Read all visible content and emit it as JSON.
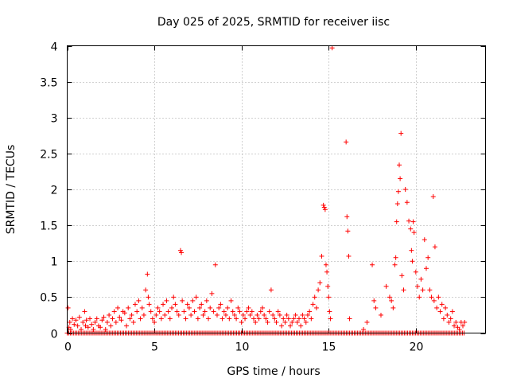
{
  "chart_data": {
    "type": "scatter",
    "title": "Day 025 of 2025, SRMTID for receiver iisc",
    "xlabel": "GPS time / hours",
    "ylabel": "SRMTID / TECUs",
    "xlim": [
      0,
      24
    ],
    "ylim": [
      0,
      4
    ],
    "xticks": [
      0,
      5,
      10,
      15,
      20
    ],
    "yticks": [
      0,
      0.5,
      1,
      1.5,
      2,
      2.5,
      3,
      3.5,
      4
    ],
    "xtick_labels": [
      "0",
      "5",
      "10",
      "15",
      "20"
    ],
    "ytick_labels": [
      "0",
      "0.5",
      "1",
      "1.5",
      "2",
      "2.5",
      "3",
      "3.5",
      "4"
    ],
    "grid": true,
    "marker": "+",
    "color": "#ff0000",
    "series": [
      {
        "name": "SRMTID",
        "x": [
          0.05,
          0.1,
          0.15,
          0.2,
          0.3,
          0.4,
          0.5,
          0.6,
          0.7,
          0.8,
          0.9,
          1.0,
          1.05,
          1.1,
          1.2,
          1.3,
          1.4,
          1.5,
          1.6,
          1.7,
          1.8,
          1.9,
          2.0,
          2.1,
          2.2,
          2.3,
          2.4,
          2.5,
          2.6,
          2.7,
          2.8,
          2.9,
          3.0,
          3.1,
          3.2,
          3.3,
          3.4,
          3.5,
          3.6,
          3.7,
          3.8,
          3.9,
          4.0,
          4.1,
          4.2,
          4.3,
          4.4,
          4.5,
          4.6,
          4.65,
          4.7,
          4.8,
          4.9,
          5.0,
          5.1,
          5.2,
          5.3,
          5.4,
          5.5,
          5.6,
          5.7,
          5.8,
          5.9,
          6.0,
          6.1,
          6.2,
          6.3,
          6.4,
          6.5,
          6.55,
          6.6,
          6.7,
          6.8,
          6.9,
          7.0,
          7.1,
          7.2,
          7.3,
          7.4,
          7.5,
          7.6,
          7.7,
          7.8,
          7.9,
          8.0,
          8.1,
          8.2,
          8.3,
          8.4,
          8.5,
          8.6,
          8.7,
          8.8,
          8.9,
          9.0,
          9.1,
          9.2,
          9.3,
          9.4,
          9.5,
          9.6,
          9.7,
          9.8,
          9.9,
          10.0,
          10.1,
          10.2,
          10.3,
          10.4,
          10.5,
          10.6,
          10.7,
          10.8,
          10.9,
          11.0,
          11.1,
          11.2,
          11.3,
          11.4,
          11.5,
          11.6,
          11.7,
          11.8,
          11.9,
          12.0,
          12.1,
          12.2,
          12.3,
          12.4,
          12.5,
          12.6,
          12.7,
          12.8,
          12.9,
          13.0,
          13.1,
          13.2,
          13.3,
          13.4,
          13.5,
          13.6,
          13.7,
          13.8,
          13.9,
          14.0,
          14.1,
          14.2,
          14.3,
          14.4,
          14.5,
          14.6,
          14.7,
          14.75,
          14.8,
          14.85,
          14.9,
          14.95,
          15.0,
          15.05,
          15.1,
          15.2,
          16.0,
          16.05,
          16.1,
          16.15,
          16.2,
          17.0,
          17.2,
          17.5,
          17.6,
          17.7,
          18.0,
          18.3,
          18.5,
          18.6,
          18.7,
          18.8,
          18.85,
          18.9,
          18.95,
          19.0,
          19.05,
          19.1,
          19.15,
          19.2,
          19.3,
          19.4,
          19.5,
          19.6,
          19.7,
          19.75,
          19.8,
          19.85,
          19.9,
          20.0,
          20.1,
          20.2,
          20.3,
          20.4,
          20.5,
          20.6,
          20.7,
          20.8,
          20.9,
          21.0,
          21.05,
          21.1,
          21.2,
          21.3,
          21.4,
          21.5,
          21.6,
          21.7,
          21.8,
          21.9,
          22.0,
          22.1,
          22.2,
          22.3,
          22.4,
          22.5,
          22.6,
          22.7,
          22.8
        ],
        "y": [
          0.35,
          0.08,
          0.15,
          0.05,
          0.2,
          0.12,
          0.18,
          0.1,
          0.22,
          0.05,
          0.15,
          0.3,
          0.1,
          0.18,
          0.08,
          0.2,
          0.12,
          0.05,
          0.15,
          0.2,
          0.1,
          0.08,
          0.18,
          0.22,
          0.05,
          0.15,
          0.25,
          0.1,
          0.2,
          0.3,
          0.15,
          0.35,
          0.22,
          0.18,
          0.3,
          0.28,
          0.1,
          0.35,
          0.2,
          0.25,
          0.15,
          0.4,
          0.3,
          0.45,
          0.2,
          0.35,
          0.25,
          0.6,
          0.82,
          0.5,
          0.4,
          0.3,
          0.2,
          0.15,
          0.25,
          0.35,
          0.3,
          0.2,
          0.4,
          0.25,
          0.45,
          0.3,
          0.2,
          0.35,
          0.5,
          0.4,
          0.3,
          0.25,
          1.15,
          1.12,
          0.45,
          0.3,
          0.2,
          0.4,
          0.35,
          0.25,
          0.45,
          0.3,
          0.5,
          0.2,
          0.35,
          0.4,
          0.25,
          0.3,
          0.45,
          0.2,
          0.35,
          0.55,
          0.3,
          0.95,
          0.25,
          0.35,
          0.4,
          0.2,
          0.3,
          0.25,
          0.35,
          0.2,
          0.45,
          0.3,
          0.25,
          0.2,
          0.35,
          0.3,
          0.15,
          0.25,
          0.2,
          0.3,
          0.35,
          0.25,
          0.3,
          0.2,
          0.15,
          0.25,
          0.2,
          0.3,
          0.35,
          0.25,
          0.2,
          0.15,
          0.3,
          0.6,
          0.25,
          0.2,
          0.15,
          0.3,
          0.25,
          0.1,
          0.2,
          0.15,
          0.25,
          0.2,
          0.1,
          0.15,
          0.2,
          0.25,
          0.15,
          0.2,
          0.1,
          0.25,
          0.2,
          0.15,
          0.25,
          0.3,
          0.2,
          0.4,
          0.5,
          0.35,
          0.6,
          0.7,
          1.07,
          1.78,
          1.75,
          1.72,
          0.95,
          0.85,
          0.65,
          0.5,
          0.3,
          0.2,
          3.97,
          2.66,
          1.62,
          1.42,
          1.07,
          0.2,
          0.05,
          0.15,
          0.95,
          0.45,
          0.35,
          0.25,
          0.65,
          0.5,
          0.45,
          0.35,
          0.95,
          1.05,
          1.55,
          1.8,
          1.97,
          2.34,
          2.15,
          2.78,
          0.8,
          0.6,
          2.0,
          1.82,
          1.56,
          1.45,
          1.15,
          1.0,
          1.55,
          1.4,
          0.85,
          0.65,
          0.5,
          0.75,
          0.6,
          1.3,
          0.9,
          1.05,
          0.6,
          0.5,
          1.9,
          0.45,
          1.2,
          0.35,
          0.5,
          0.3,
          0.4,
          0.2,
          0.35,
          0.25,
          0.15,
          0.2,
          0.3,
          0.1,
          0.15,
          0.08,
          0.05,
          0.15,
          0.1,
          0.15
        ]
      }
    ],
    "baseline_band": {
      "y": 0,
      "x_ranges": [
        [
          0,
          22.8
        ]
      ],
      "note": "dense points at ~0"
    }
  }
}
